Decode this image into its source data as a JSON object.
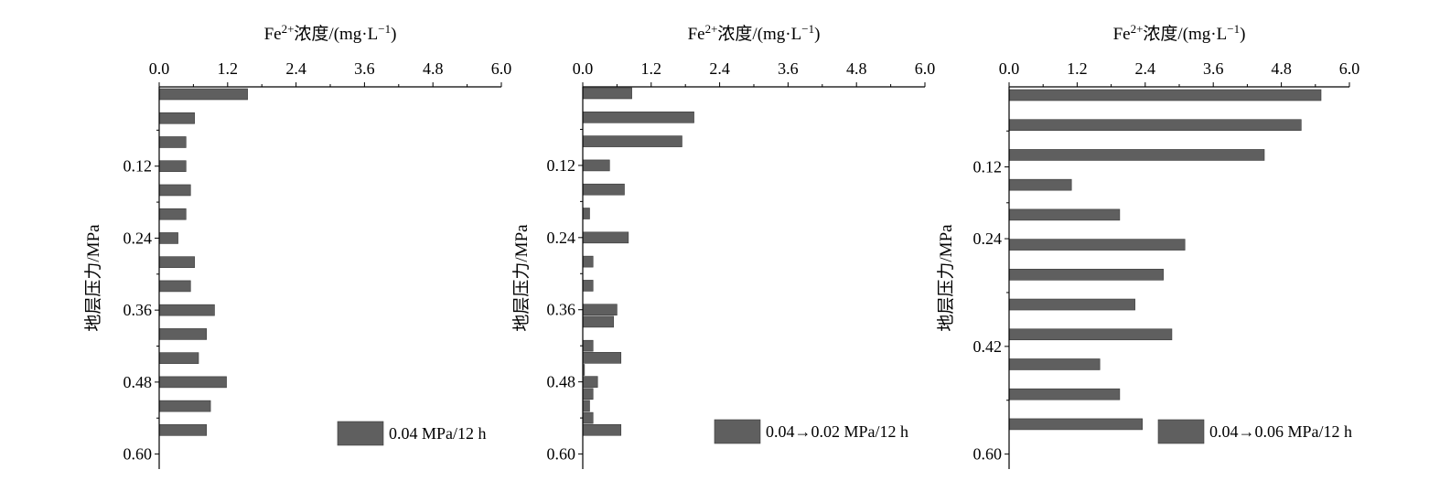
{
  "colors": {
    "bar": "#5f5f5f",
    "axis": "#000000",
    "background": "#ffffff"
  },
  "chart_data": [
    {
      "type": "bar",
      "orientation": "horizontal",
      "title": "",
      "xlabel": "Fe2+浓度/(mg·L−1)",
      "xlabel_parts": {
        "main": "Fe",
        "sup1": "2+",
        "mid": "浓度/(mg·L",
        "sup2": "−1",
        "end": ")"
      },
      "ylabel": "地层压力/MPa",
      "xlim": [
        0,
        6
      ],
      "xticks": [
        "0.0",
        "1.2",
        "2.4",
        "3.6",
        "4.8",
        "6.0"
      ],
      "ylim": [
        0.625,
        0.0
      ],
      "yticks": [
        "0.12",
        "0.24",
        "0.36",
        "0.48",
        "0.60"
      ],
      "y_axis_top_px_value_offset": null,
      "bars": [
        {
          "y": 0.0,
          "value": 1.55
        },
        {
          "y": 0.04,
          "value": 0.62
        },
        {
          "y": 0.08,
          "value": 0.47
        },
        {
          "y": 0.12,
          "value": 0.47
        },
        {
          "y": 0.16,
          "value": 0.55
        },
        {
          "y": 0.2,
          "value": 0.47
        },
        {
          "y": 0.24,
          "value": 0.33
        },
        {
          "y": 0.28,
          "value": 0.62
        },
        {
          "y": 0.32,
          "value": 0.55
        },
        {
          "y": 0.36,
          "value": 0.97
        },
        {
          "y": 0.4,
          "value": 0.83
        },
        {
          "y": 0.44,
          "value": 0.69
        },
        {
          "y": 0.48,
          "value": 1.18
        },
        {
          "y": 0.52,
          "value": 0.9
        },
        {
          "y": 0.56,
          "value": 0.83
        }
      ],
      "series": [
        {
          "name": "0.04 MPa/12 h"
        }
      ],
      "legend_position": "bottom-right",
      "grid": false
    },
    {
      "type": "bar",
      "orientation": "horizontal",
      "title": "",
      "xlabel": "Fe2+浓度/(mg·L−1)",
      "xlabel_parts": {
        "main": "Fe",
        "sup1": "2+",
        "mid": "浓度/(mg·L",
        "sup2": "−1",
        "end": ")"
      },
      "ylabel": "地层压力/MPa",
      "xlim": [
        0,
        6
      ],
      "xticks": [
        "0.0",
        "1.2",
        "2.4",
        "3.6",
        "4.8",
        "6.0"
      ],
      "ylim": [
        0.625,
        0.0
      ],
      "yticks": [
        "0.12",
        "0.24",
        "0.36",
        "0.48",
        "0.60"
      ],
      "bars": [
        {
          "y": 0.0,
          "value": 0.86
        },
        {
          "y": 0.04,
          "value": 1.95
        },
        {
          "y": 0.08,
          "value": 1.74
        },
        {
          "y": 0.12,
          "value": 0.47
        },
        {
          "y": 0.16,
          "value": 0.73
        },
        {
          "y": 0.2,
          "value": 0.12
        },
        {
          "y": 0.24,
          "value": 0.8
        },
        {
          "y": 0.28,
          "value": 0.18
        },
        {
          "y": 0.32,
          "value": 0.18
        },
        {
          "y": 0.36,
          "value": 0.6
        },
        {
          "y": 0.38,
          "value": 0.54
        },
        {
          "y": 0.42,
          "value": 0.18
        },
        {
          "y": 0.44,
          "value": 0.67
        },
        {
          "y": 0.46,
          "value": 0.03
        },
        {
          "y": 0.48,
          "value": 0.26
        },
        {
          "y": 0.5,
          "value": 0.18
        },
        {
          "y": 0.52,
          "value": 0.12
        },
        {
          "y": 0.54,
          "value": 0.18
        },
        {
          "y": 0.56,
          "value": 0.67
        }
      ],
      "series": [
        {
          "name": "0.04→0.02 MPa/12 h"
        }
      ],
      "legend_position": "bottom-right",
      "grid": false
    },
    {
      "type": "bar",
      "orientation": "horizontal",
      "title": "",
      "xlabel": "Fe2+浓度/(mg·L−1)",
      "xlabel_parts": {
        "main": "Fe",
        "sup1": "2+",
        "mid": "浓度/(mg·L",
        "sup2": "−1",
        "end": ")"
      },
      "ylabel": "地层压力/MPa",
      "xlim": [
        0,
        6
      ],
      "xticks": [
        "0.0",
        "1.2",
        "2.4",
        "3.6",
        "4.8",
        "6.0"
      ],
      "ylim": [
        0.625,
        0.0
      ],
      "yticks": [
        "0.12",
        "0.24",
        "0.42",
        "0.60"
      ],
      "ytick_values": [
        0.12,
        0.24,
        0.42,
        0.6
      ],
      "bars": [
        {
          "y": 0.0,
          "value": 5.5
        },
        {
          "y": 0.05,
          "value": 5.15
        },
        {
          "y": 0.1,
          "value": 4.5
        },
        {
          "y": 0.15,
          "value": 1.1
        },
        {
          "y": 0.2,
          "value": 1.95
        },
        {
          "y": 0.25,
          "value": 3.1
        },
        {
          "y": 0.3,
          "value": 2.72
        },
        {
          "y": 0.35,
          "value": 2.22
        },
        {
          "y": 0.4,
          "value": 2.87
        },
        {
          "y": 0.45,
          "value": 1.6
        },
        {
          "y": 0.5,
          "value": 1.95
        },
        {
          "y": 0.55,
          "value": 2.35
        }
      ],
      "series": [
        {
          "name": "0.04→0.06 MPa/12 h"
        }
      ],
      "legend_position": "bottom-right",
      "grid": false
    }
  ]
}
